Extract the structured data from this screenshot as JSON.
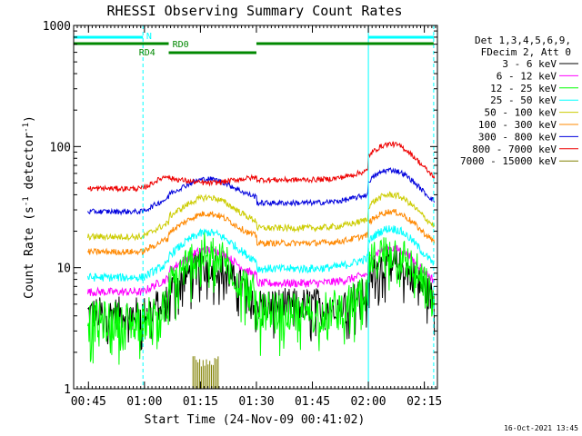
{
  "chart_data": {
    "type": "line",
    "title": "RHESSI Observing Summary Count Rates",
    "xlabel": "Start Time (24-Nov-09 00:41:02)",
    "ylabel_main": "Count Rate (s",
    "ylabel_sup1": "-1",
    "ylabel_mid": " detector",
    "ylabel_sup2": "-1",
    "ylabel_end": ")",
    "y_scale": "log",
    "ylim": [
      1,
      1000
    ],
    "xlim_minutes": [
      41.03,
      138.5
    ],
    "x_ticks": [
      {
        "t": 45,
        "label": "00:45"
      },
      {
        "t": 60,
        "label": "01:00"
      },
      {
        "t": 75,
        "label": "01:15"
      },
      {
        "t": 90,
        "label": "01:30"
      },
      {
        "t": 105,
        "label": "01:45"
      },
      {
        "t": 120,
        "label": "02:00"
      },
      {
        "t": 135,
        "label": "02:15"
      }
    ],
    "y_ticks": [
      {
        "v": 1,
        "label": "1"
      },
      {
        "v": 10,
        "label": "10"
      },
      {
        "v": 100,
        "label": "100"
      },
      {
        "v": 1000,
        "label": "1000"
      }
    ],
    "legend_header": [
      "Det 1,3,4,5,6,9,",
      "FDecim 2, Att 0"
    ],
    "footer_date": "16-Oct-2021 13:45",
    "flags": {
      "night_label": "N",
      "rd0_label": "RD0",
      "rd4_label": "RD4",
      "night_color": "#00ffff",
      "rd_color": "#008800",
      "night_intervals": [
        [
          41.03,
          59.6
        ],
        [
          120.0,
          137.5
        ]
      ],
      "night_boundaries": [
        59.6,
        120.0,
        137.5
      ],
      "rd0_intervals": [
        [
          41.03,
          66.5
        ],
        [
          90.0,
          137.5
        ]
      ],
      "rd4_intervals": [
        [
          66.5,
          90.0
        ]
      ]
    },
    "series": [
      {
        "name": "3 - 6 keV",
        "color": "#000000",
        "base": 4.2,
        "peak1": 10.5,
        "peak2": 11,
        "noise": 0.32
      },
      {
        "name": "6 - 12 keV",
        "color": "#ff00ff",
        "base": 6.3,
        "peak1": 14,
        "peak2": 14.5,
        "noise": 0.08
      },
      {
        "name": "12 - 25 keV",
        "color": "#00ff00",
        "base": 3.6,
        "peak1": 13.5,
        "peak2": 13.5,
        "noise": 0.4
      },
      {
        "name": "25 - 50 keV",
        "color": "#00ffff",
        "base": 8.3,
        "peak1": 19.5,
        "peak2": 21,
        "noise": 0.08
      },
      {
        "name": "50 - 100 keV",
        "color": "#cccc00",
        "base": 18,
        "peak1": 38,
        "peak2": 40,
        "noise": 0.06
      },
      {
        "name": "100 - 300 keV",
        "color": "#ff8800",
        "base": 13.5,
        "peak1": 28,
        "peak2": 29,
        "noise": 0.06
      },
      {
        "name": "300 - 800 keV",
        "color": "#0000dd",
        "base": 29,
        "peak1": 54,
        "peak2": 64,
        "noise": 0.05
      },
      {
        "name": "800 - 7000 keV",
        "color": "#ee0000",
        "base": 45,
        "peak1": 50,
        "peak2": 105,
        "noise": 0.05
      },
      {
        "name": "7000 - 15000 keV",
        "color": "#808000",
        "base": 0,
        "peak1": 1.9,
        "peak2": 0,
        "noise": 0
      }
    ]
  }
}
